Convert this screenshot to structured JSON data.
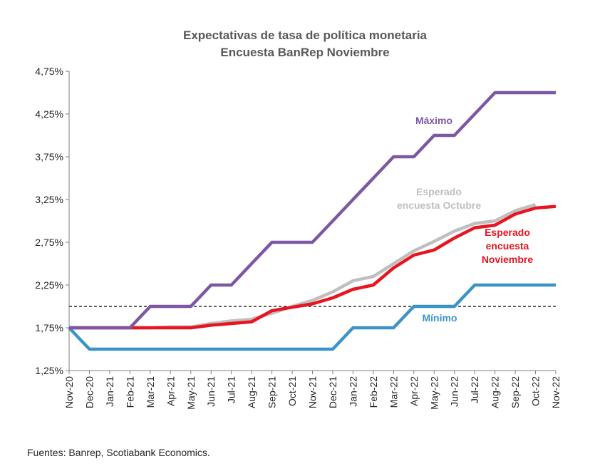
{
  "chart_data": {
    "type": "line",
    "title": "Expectativas de tasa de política monetaria",
    "subtitle": "Encuesta BanRep Noviembre",
    "xlabel": "",
    "ylabel": "",
    "ylim": [
      1.25,
      4.75
    ],
    "y_ticks": [
      "1,25%",
      "1,75%",
      "2,25%",
      "2,75%",
      "3,25%",
      "3,75%",
      "4,25%",
      "4,75%"
    ],
    "y_tick_values": [
      1.25,
      1.75,
      2.25,
      2.75,
      3.25,
      3.75,
      4.25,
      4.75
    ],
    "categories": [
      "Nov-20",
      "Dec-20",
      "Jan-21",
      "Feb-21",
      "Mar-21",
      "Apr-21",
      "May-21",
      "Jun-21",
      "Jul-21",
      "Aug-21",
      "Sep-21",
      "Oct-21",
      "Nov-21",
      "Dec-21",
      "Jan-22",
      "Feb-22",
      "Mar-22",
      "Apr-22",
      "May-22",
      "Jun-22",
      "Jul-22",
      "Aug-22",
      "Sep-22",
      "Oct-22",
      "Nov-22"
    ],
    "reference_line": {
      "value": 2.0,
      "style": "dashed",
      "color": "#000000"
    },
    "series": [
      {
        "name": "Máximo",
        "label": "Máximo",
        "color": "#7E57A4",
        "values": [
          1.75,
          1.75,
          1.75,
          1.75,
          2.0,
          2.0,
          2.0,
          2.25,
          2.25,
          2.5,
          2.75,
          2.75,
          2.75,
          3.0,
          3.25,
          3.5,
          3.75,
          3.75,
          4.0,
          4.0,
          4.25,
          4.5,
          4.5,
          4.5,
          4.5
        ]
      },
      {
        "name": "Esperado encuesta Octubre",
        "label_lines": [
          "Esperado",
          "encuesta Octubre"
        ],
        "color": "#BFBFBF",
        "values": [
          1.75,
          1.75,
          1.75,
          1.75,
          1.75,
          1.76,
          1.76,
          1.8,
          1.83,
          1.85,
          1.92,
          2.0,
          2.07,
          2.17,
          2.3,
          2.35,
          2.5,
          2.65,
          2.76,
          2.88,
          2.97,
          3.0,
          3.12,
          3.19,
          null
        ]
      },
      {
        "name": "Esperado encuesta Noviembre",
        "label_lines": [
          "Esperado",
          "encuesta",
          "Noviembre"
        ],
        "color": "#E8141F",
        "values": [
          1.75,
          1.75,
          1.75,
          1.75,
          1.75,
          1.75,
          1.75,
          1.78,
          1.8,
          1.82,
          1.95,
          1.99,
          2.03,
          2.1,
          2.2,
          2.25,
          2.45,
          2.6,
          2.66,
          2.8,
          2.92,
          2.95,
          3.08,
          3.15,
          3.17
        ]
      },
      {
        "name": "Mínimo",
        "label": "Mínimo",
        "color": "#3C93C8",
        "values": [
          1.75,
          1.5,
          1.5,
          1.5,
          1.5,
          1.5,
          1.5,
          1.5,
          1.5,
          1.5,
          1.5,
          1.5,
          1.5,
          1.5,
          1.75,
          1.75,
          1.75,
          2.0,
          2.0,
          2.0,
          2.25,
          2.25,
          2.25,
          2.25,
          2.25
        ]
      }
    ]
  },
  "footer": {
    "source": "Fuentes: Banrep, Scotiabank Economics."
  }
}
